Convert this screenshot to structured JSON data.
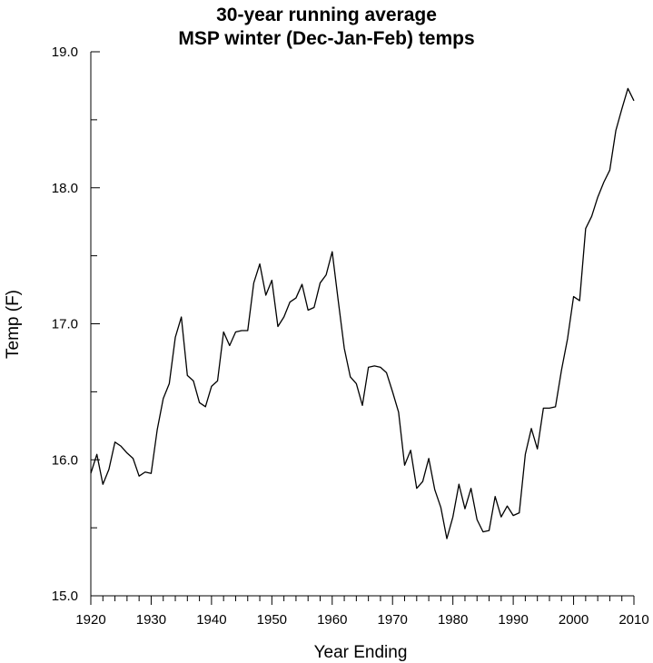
{
  "chart_data": {
    "type": "line",
    "title": "30-year running average",
    "subtitle": "MSP winter (Dec-Jan-Feb) temps",
    "xlabel": "Year Ending",
    "ylabel": "Temp (F)",
    "xlim": [
      1920,
      2010
    ],
    "ylim": [
      15.0,
      19.0
    ],
    "x_ticks": [
      "1920",
      "1930",
      "1940",
      "1950",
      "1960",
      "1970",
      "1980",
      "1990",
      "2000",
      "2010"
    ],
    "y_ticks": [
      "15.0",
      "16.0",
      "17.0",
      "18.0",
      "19.0"
    ],
    "grid": false,
    "series": [
      {
        "color": "#000000",
        "x": [
          1920,
          1921,
          1922,
          1923,
          1924,
          1925,
          1926,
          1927,
          1928,
          1929,
          1930,
          1931,
          1932,
          1933,
          1934,
          1935,
          1936,
          1937,
          1938,
          1939,
          1940,
          1941,
          1942,
          1943,
          1944,
          1945,
          1946,
          1947,
          1948,
          1949,
          1950,
          1951,
          1952,
          1953,
          1954,
          1955,
          1956,
          1957,
          1958,
          1959,
          1960,
          1961,
          1962,
          1963,
          1964,
          1965,
          1966,
          1967,
          1968,
          1969,
          1970,
          1971,
          1972,
          1973,
          1974,
          1975,
          1976,
          1977,
          1978,
          1979,
          1980,
          1981,
          1982,
          1983,
          1984,
          1985,
          1986,
          1987,
          1988,
          1989,
          1990,
          1991,
          1992,
          1993,
          1994,
          1995,
          1996,
          1997,
          1998,
          1999,
          2000,
          2001,
          2002,
          2003,
          2004,
          2005,
          2006,
          2007,
          2008,
          2009,
          2010
        ],
        "values": [
          15.9,
          16.04,
          15.82,
          15.93,
          16.13,
          16.1,
          16.05,
          16.01,
          15.88,
          15.91,
          15.9,
          16.22,
          16.45,
          16.56,
          16.9,
          17.05,
          16.62,
          16.58,
          16.42,
          16.39,
          16.54,
          16.58,
          16.94,
          16.84,
          16.94,
          16.95,
          16.95,
          17.3,
          17.44,
          17.21,
          17.32,
          16.98,
          17.05,
          17.16,
          17.19,
          17.29,
          17.1,
          17.12,
          17.3,
          17.36,
          17.53,
          17.17,
          16.82,
          16.61,
          16.56,
          16.4,
          16.68,
          16.69,
          16.68,
          16.64,
          16.5,
          16.35,
          15.96,
          16.07,
          15.79,
          15.84,
          16.01,
          15.78,
          15.65,
          15.42,
          15.58,
          15.82,
          15.64,
          15.79,
          15.56,
          15.47,
          15.48,
          15.73,
          15.58,
          15.66,
          15.59,
          15.61,
          16.04,
          16.23,
          16.08,
          16.38,
          16.38,
          16.39,
          16.66,
          16.89,
          17.2,
          17.17,
          17.7,
          17.79,
          17.93,
          18.04,
          18.13,
          18.42,
          18.58,
          18.73,
          18.64
        ]
      }
    ]
  }
}
